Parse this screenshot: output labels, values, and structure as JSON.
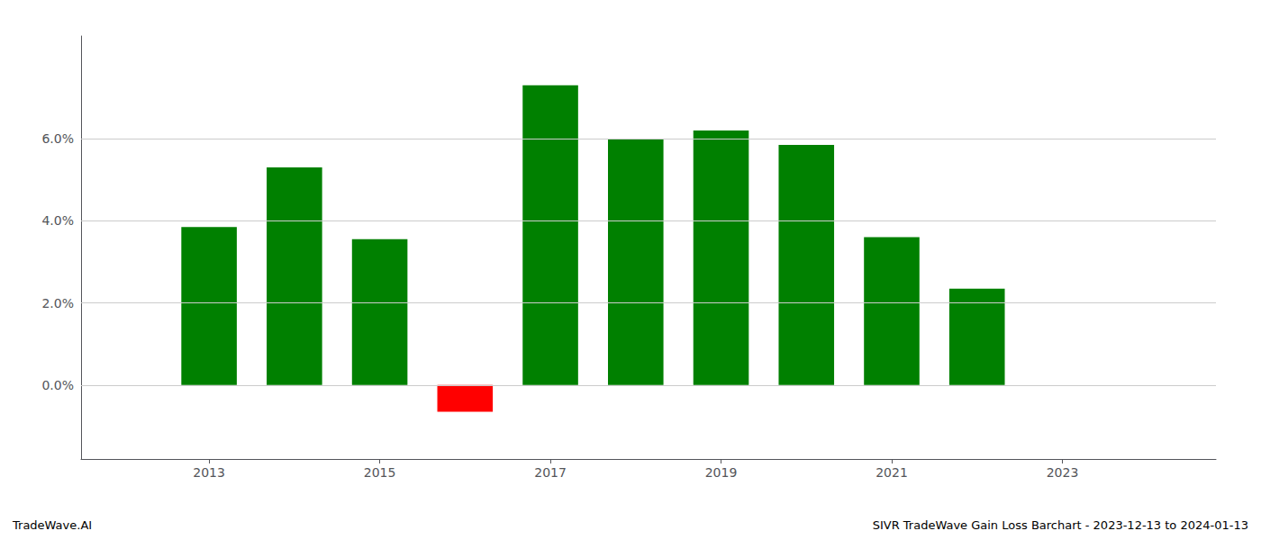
{
  "chart_data": {
    "type": "bar",
    "x": [
      2013,
      2014,
      2015,
      2016,
      2017,
      2018,
      2019,
      2020,
      2021,
      2022
    ],
    "values": [
      0.0385,
      0.053,
      0.0355,
      -0.0065,
      0.073,
      0.06,
      0.062,
      0.0585,
      0.036,
      0.0235
    ],
    "colors": [
      "#008000",
      "#008000",
      "#008000",
      "#ff0000",
      "#008000",
      "#008000",
      "#008000",
      "#008000",
      "#008000",
      "#008000"
    ],
    "xlim": [
      2011.5,
      2024.8
    ],
    "xticks": [
      2013,
      2015,
      2017,
      2019,
      2021,
      2023
    ],
    "ylim": [
      -0.018,
      0.085
    ],
    "yticks": [
      {
        "value": 0.0,
        "label": "0.0%"
      },
      {
        "value": 0.02,
        "label": "2.0%"
      },
      {
        "value": 0.04,
        "label": "4.0%"
      },
      {
        "value": 0.06,
        "label": "6.0%"
      }
    ],
    "grid": true,
    "annotations": [
      "TradeWave.AI",
      "SIVR TradeWave Gain Loss Barchart - 2023-12-13 to 2024-01-13"
    ]
  }
}
